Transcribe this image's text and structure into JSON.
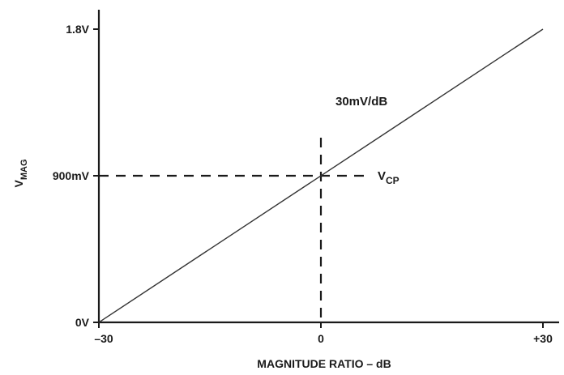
{
  "chart_data": {
    "type": "line",
    "x": [
      -30,
      30
    ],
    "y": [
      0,
      1.8
    ],
    "xlim": [
      -30,
      30
    ],
    "ylim": [
      0,
      1.8
    ],
    "grid": false,
    "xlabel": "MAGNITUDE RATIO – dB",
    "ylabel_main": "V",
    "ylabel_sub": "MAG",
    "x_ticks": [
      {
        "value": -30,
        "label": "–30"
      },
      {
        "value": 0,
        "label": "0"
      },
      {
        "value": 30,
        "label": "+30"
      }
    ],
    "y_ticks": [
      {
        "value": 0,
        "label": "0V"
      },
      {
        "value": 0.9,
        "label": "900mV"
      },
      {
        "value": 1.8,
        "label": "1.8V"
      }
    ],
    "reference_point": {
      "x": 0,
      "y": 0.9
    },
    "slope_annotation": "30mV/dB",
    "ref_label_main": "V",
    "ref_label_sub": "CP"
  },
  "colors": {
    "line": "#333333",
    "axis": "#1a1a1a",
    "dashed": "#1a1a1a"
  }
}
